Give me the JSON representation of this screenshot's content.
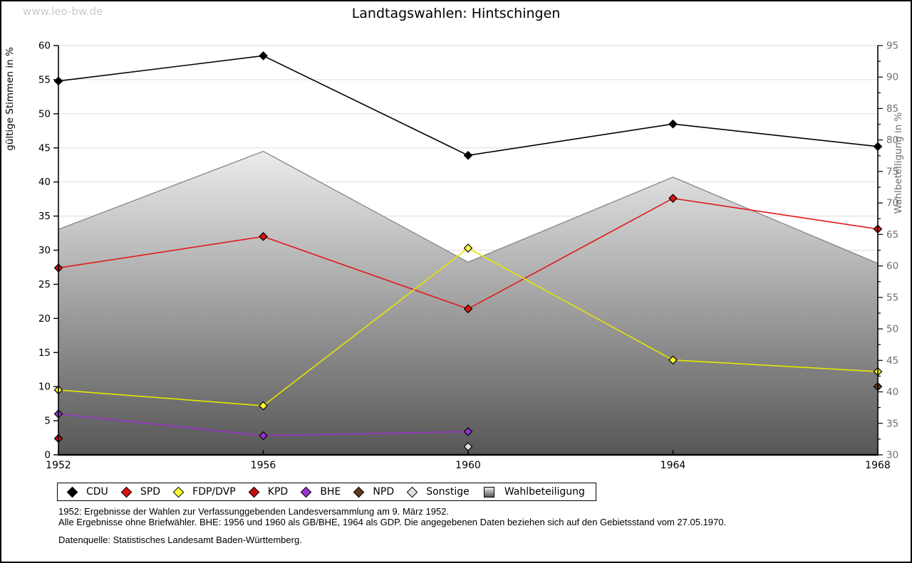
{
  "page": {
    "watermark": "www.leo-bw.de",
    "title": "Landtagswahlen: Hintschingen"
  },
  "chart_data": {
    "type": "line",
    "title": "Landtagswahlen: Hintschingen",
    "x": [
      1952,
      1956,
      1960,
      1964,
      1968
    ],
    "left_axis": {
      "label": "gültige Stimmen in %",
      "min": 0,
      "max": 60,
      "tick_step": 5
    },
    "right_axis": {
      "label": "Wahlbeteiligung in %",
      "min": 30,
      "max": 95,
      "tick_step": 5,
      "minor_tick_step": 2.5
    },
    "grid": true,
    "legend_position": "bottom",
    "series": [
      {
        "name": "CDU",
        "type": "line",
        "axis": "left",
        "line_color": "#000000",
        "fill": "#000000",
        "values": [
          54.8,
          58.5,
          43.9,
          48.5,
          45.2
        ]
      },
      {
        "name": "SPD",
        "type": "line",
        "axis": "left",
        "line_color": "#e31a1a",
        "fill": "#dd1111",
        "values": [
          27.4,
          32.0,
          21.4,
          37.6,
          33.1
        ]
      },
      {
        "name": "FDP/DVP",
        "type": "line",
        "axis": "left",
        "line_color": "#e6e600",
        "fill": "#ffff33",
        "values": [
          9.5,
          7.2,
          30.3,
          13.9,
          12.2
        ]
      },
      {
        "name": "KPD",
        "type": "line",
        "axis": "left",
        "line_color": "#b01216",
        "fill": "#c70c12",
        "values": [
          2.4,
          null,
          null,
          null,
          null
        ]
      },
      {
        "name": "BHE",
        "type": "line",
        "axis": "left",
        "line_color": "#9932cc",
        "fill": "#9932cc",
        "values": [
          6.0,
          2.8,
          3.4,
          null,
          null
        ]
      },
      {
        "name": "NPD",
        "type": "line",
        "axis": "left",
        "line_color": "#5f3b20",
        "fill": "#5f3b20",
        "values": [
          null,
          null,
          null,
          null,
          10.0
        ]
      },
      {
        "name": "Sonstige",
        "type": "line",
        "axis": "left",
        "line_color": "#bfbfbf",
        "fill": "#e0e0e0",
        "values": [
          null,
          null,
          1.2,
          null,
          null
        ]
      },
      {
        "name": "Wahlbeteiligung",
        "type": "area",
        "axis": "right",
        "line_color": "#8c8c8c",
        "fill_gradient": [
          "#ececec",
          "#565656"
        ],
        "values": [
          65.8,
          78.2,
          60.6,
          74.1,
          60.4
        ]
      }
    ],
    "colors": {
      "grid": "#dcdcdc",
      "axis": "#000000",
      "right_axis_text": "#6e6e6e",
      "left_axis_text": "#000000"
    }
  },
  "footnotes": {
    "line1": "1952: Ergebnisse der Wahlen zur Verfassunggebenden Landesversammlung am 9. März 1952.",
    "line2": "Alle Ergebnisse ohne Briefwähler. BHE: 1956 und 1960 als GB/BHE, 1964 als GDP. Die angegebenen Daten beziehen sich auf den Gebietsstand vom 27.05.1970.",
    "source": "Datenquelle: Statistisches Landesamt Baden-Württemberg."
  }
}
